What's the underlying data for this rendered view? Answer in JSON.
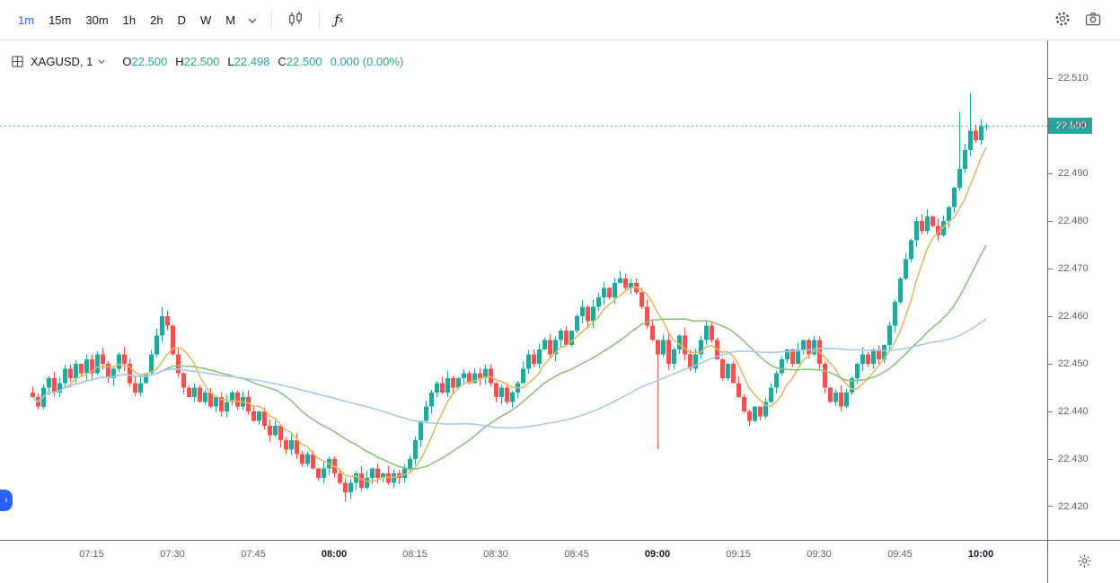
{
  "toolbar": {
    "intervals": [
      {
        "label": "1m",
        "active": true
      },
      {
        "label": "15m",
        "active": false
      },
      {
        "label": "30m",
        "active": false
      },
      {
        "label": "1h",
        "active": false
      },
      {
        "label": "2h",
        "active": false
      },
      {
        "label": "D",
        "active": false
      },
      {
        "label": "W",
        "active": false
      },
      {
        "label": "M",
        "active": false
      }
    ],
    "fx_f": "ƒ",
    "fx_x": "x"
  },
  "legend": {
    "symbol_label": "XAGUSD, 1",
    "open_label": "O",
    "open": "22.500",
    "high_label": "H",
    "high": "22.500",
    "low_label": "L",
    "low": "22.498",
    "close_label": "C",
    "close": "22.500",
    "change": "0.000 (0.00%)"
  },
  "price_axis": {
    "labels": [
      "22.510",
      "22.500",
      "22.490",
      "22.480",
      "22.470",
      "22.460",
      "22.450",
      "22.440",
      "22.430",
      "22.420"
    ],
    "last_price": "22.500"
  },
  "time_axis": {
    "labels": [
      {
        "t": "07:15",
        "bold": false
      },
      {
        "t": "07:30",
        "bold": false
      },
      {
        "t": "07:45",
        "bold": false
      },
      {
        "t": "08:00",
        "bold": true
      },
      {
        "t": "08:15",
        "bold": false
      },
      {
        "t": "08:30",
        "bold": false
      },
      {
        "t": "08:45",
        "bold": false
      },
      {
        "t": "09:00",
        "bold": true
      },
      {
        "t": "09:15",
        "bold": false
      },
      {
        "t": "09:30",
        "bold": false
      },
      {
        "t": "09:45",
        "bold": false
      },
      {
        "t": "10:00",
        "bold": true
      }
    ]
  },
  "expander_glyph": "›",
  "chart_data": {
    "type": "candlestick",
    "symbol": "XAGUSD",
    "interval_minutes": 1,
    "start_time": "07:04",
    "grid": false,
    "legend_ohlc": {
      "open": 22.5,
      "high": 22.5,
      "low": 22.498,
      "close": 22.5,
      "change": 0.0,
      "change_pct": "0.00%"
    },
    "first_open": 22.444,
    "closes": [
      22.443,
      22.441,
      22.445,
      22.447,
      22.444,
      22.446,
      22.449,
      22.447,
      22.45,
      22.448,
      22.451,
      22.448,
      22.452,
      22.45,
      22.447,
      22.449,
      22.452,
      22.45,
      22.446,
      22.444,
      22.446,
      22.448,
      22.452,
      22.456,
      22.46,
      22.458,
      22.452,
      22.448,
      22.445,
      22.443,
      22.445,
      22.442,
      22.444,
      22.441,
      22.443,
      22.44,
      22.442,
      22.444,
      22.441,
      22.443,
      22.44,
      22.438,
      22.44,
      22.437,
      22.435,
      22.437,
      22.434,
      22.432,
      22.434,
      22.431,
      22.429,
      22.431,
      22.428,
      22.426,
      22.428,
      22.43,
      22.427,
      22.425,
      22.423,
      22.425,
      22.427,
      22.424,
      22.426,
      22.428,
      22.426,
      22.427,
      22.425,
      22.427,
      22.426,
      22.428,
      22.43,
      22.434,
      22.438,
      22.441,
      22.444,
      22.446,
      22.444,
      22.447,
      22.445,
      22.447,
      22.448,
      22.446,
      22.448,
      22.447,
      22.449,
      22.446,
      22.443,
      22.445,
      22.442,
      22.444,
      22.446,
      22.449,
      22.452,
      22.45,
      22.453,
      22.455,
      22.452,
      22.455,
      22.457,
      22.454,
      22.457,
      22.46,
      22.462,
      22.459,
      22.462,
      22.464,
      22.466,
      22.464,
      22.467,
      22.468,
      22.466,
      22.467,
      22.465,
      22.462,
      22.458,
      22.455,
      22.452,
      22.455,
      22.45,
      22.453,
      22.456,
      22.452,
      22.449,
      22.452,
      22.455,
      22.458,
      22.455,
      22.451,
      22.447,
      22.45,
      22.446,
      22.443,
      22.44,
      22.438,
      22.441,
      22.439,
      22.442,
      22.445,
      22.448,
      22.451,
      22.453,
      22.45,
      22.453,
      22.455,
      22.452,
      22.455,
      22.45,
      22.445,
      22.442,
      22.444,
      22.441,
      22.444,
      22.447,
      22.45,
      22.452,
      22.45,
      22.453,
      22.451,
      22.454,
      22.458,
      22.463,
      22.468,
      22.472,
      22.476,
      22.48,
      22.478,
      22.481,
      22.479,
      22.477,
      22.48,
      22.483,
      22.487,
      22.491,
      22.495,
      22.499,
      22.497,
      22.5,
      22.5
    ],
    "wick_overrides": [
      {
        "i": 24,
        "high": 22.462
      },
      {
        "i": 58,
        "low": 22.421
      },
      {
        "i": 116,
        "low": 22.432
      },
      {
        "i": 172,
        "high": 22.503
      },
      {
        "i": 174,
        "high": 22.507
      }
    ],
    "indicators": [
      {
        "name": "SMA 7",
        "period": 7,
        "color": "#e7b764"
      },
      {
        "name": "SMA 25",
        "period": 25,
        "color": "#8cc17e"
      },
      {
        "name": "SMA 60",
        "period": 60,
        "color": "#a5c9e8"
      }
    ],
    "up_color": "#26a69a",
    "down_color": "#ef5350",
    "last_price": 22.5,
    "ylim": [
      22.413,
      22.518
    ],
    "x_layout": {
      "pad": 36,
      "step": 6
    }
  }
}
